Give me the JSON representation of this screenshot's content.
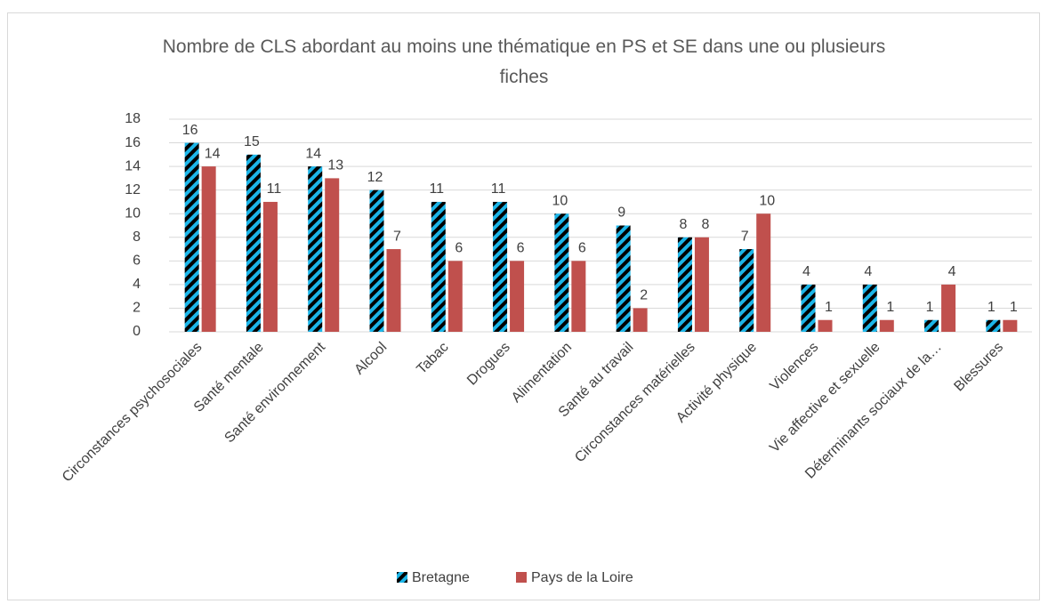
{
  "chart_data": {
    "type": "bar",
    "title": "Nombre de CLS abordant au moins une thématique en PS et SE dans une ou plusieurs fiches",
    "categories": [
      "Circonstances psychosociales",
      "Santé mentale",
      "Santé environnement",
      "Alcool",
      "Tabac",
      "Drogues",
      "Alimentation",
      "Santé au travail",
      "Circonstances matérielles",
      "Activité physique",
      "Violences",
      "Vie affective et sexuelle",
      "Déterminants sociaux de la…",
      "Blessures"
    ],
    "series": [
      {
        "name": "Bretagne",
        "color": "#1cb5e8",
        "pattern": "diagonal-stripes",
        "values": [
          16,
          15,
          14,
          12,
          11,
          11,
          10,
          9,
          8,
          7,
          4,
          4,
          1,
          1
        ]
      },
      {
        "name": "Pays de la Loire",
        "color": "#c0504d",
        "values": [
          14,
          11,
          13,
          7,
          6,
          6,
          6,
          2,
          8,
          10,
          1,
          1,
          4,
          1
        ]
      }
    ],
    "ylim": [
      0,
      18
    ],
    "yticks": [
      0,
      2,
      4,
      6,
      8,
      10,
      12,
      14,
      16,
      18
    ],
    "grid": true,
    "legend": "bottom"
  }
}
